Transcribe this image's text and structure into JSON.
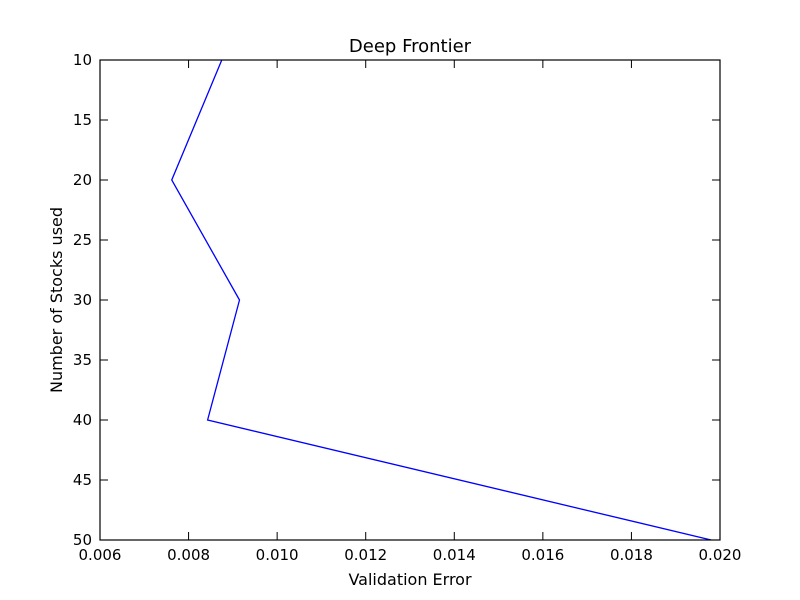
{
  "chart_data": {
    "type": "line",
    "title": "Deep Frontier",
    "xlabel": "Validation Error",
    "ylabel": "Number of Stocks used",
    "xlim": [
      0.006,
      0.02
    ],
    "ylim": [
      10,
      50
    ],
    "y_inverted": true,
    "grid": false,
    "x_ticks": [
      "0.006",
      "0.008",
      "0.010",
      "0.012",
      "0.014",
      "0.016",
      "0.018",
      "0.020"
    ],
    "y_ticks": [
      "10",
      "15",
      "20",
      "25",
      "30",
      "35",
      "40",
      "45",
      "50"
    ],
    "series": [
      {
        "color": "#0000ff",
        "points": [
          {
            "x": 0.00875,
            "y": 10
          },
          {
            "x": 0.00762,
            "y": 20
          },
          {
            "x": 0.00915,
            "y": 30
          },
          {
            "x": 0.00843,
            "y": 40
          },
          {
            "x": 0.0198,
            "y": 50
          }
        ]
      }
    ]
  }
}
